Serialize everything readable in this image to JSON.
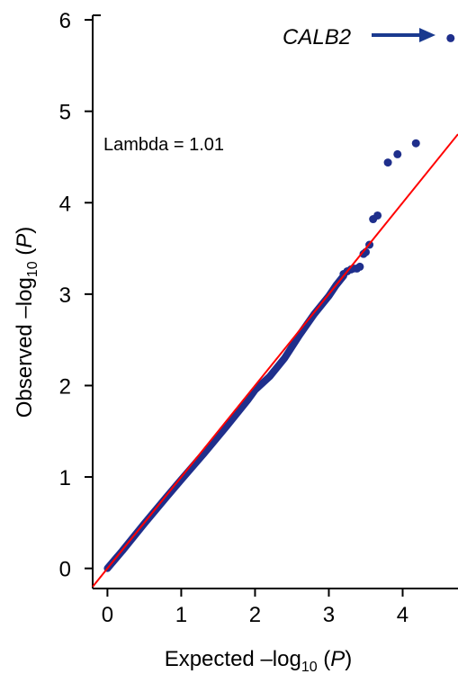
{
  "chart_data": {
    "type": "scatter",
    "title": "",
    "xlabel": {
      "prefix": "Expected –log",
      "sub": "10",
      "suffix": " (",
      "var": "P",
      "close": ")"
    },
    "ylabel": {
      "prefix": "Observed –log",
      "sub": "10",
      "suffix": " (",
      "var": "P",
      "close": ")"
    },
    "xlim": [
      -0.2,
      4.75
    ],
    "ylim": [
      -0.22,
      6.05
    ],
    "x_ticks": [
      "0",
      "1",
      "2",
      "3",
      "4"
    ],
    "y_ticks": [
      "0",
      "1",
      "2",
      "3",
      "4",
      "5",
      "6"
    ],
    "grid": false,
    "point_color": "#1f2f8c",
    "line_color": "#ff0000",
    "reference_line": {
      "slope": 1.0,
      "intercept": 0.0
    },
    "annotation_lambda": "Lambda = 1.01",
    "annotation_gene": "CALB2",
    "arrow_color": "#1a3a8f",
    "curve": {
      "x": [
        0.0,
        0.2,
        0.5,
        0.8,
        1.0,
        1.3,
        1.6,
        1.9,
        2.0,
        2.2,
        2.4,
        2.6,
        2.8,
        3.0,
        3.1,
        3.2
      ],
      "y": [
        0.0,
        0.19,
        0.49,
        0.78,
        0.97,
        1.25,
        1.54,
        1.84,
        1.95,
        2.1,
        2.3,
        2.55,
        2.78,
        2.98,
        3.1,
        3.2
      ]
    },
    "points": {
      "x": [
        3.2,
        3.25,
        3.3,
        3.33,
        3.38,
        3.42,
        3.47,
        3.5,
        3.55,
        3.6,
        3.66,
        3.8,
        3.93,
        4.18,
        4.65
      ],
      "y": [
        3.22,
        3.25,
        3.27,
        3.28,
        3.28,
        3.3,
        3.44,
        3.46,
        3.54,
        3.82,
        3.86,
        4.44,
        4.53,
        4.65,
        5.8
      ]
    }
  }
}
